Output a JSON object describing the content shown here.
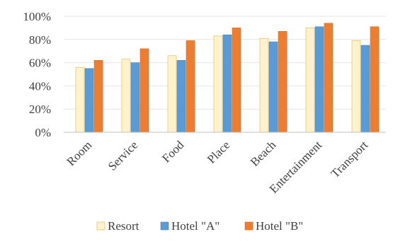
{
  "chart_data": {
    "type": "bar",
    "title": "",
    "xlabel": "",
    "ylabel": "",
    "categories": [
      "Room",
      "Service",
      "Food",
      "Place",
      "Beach",
      "Entertainment",
      "Transport"
    ],
    "series": [
      {
        "name": "Resort",
        "color": "#FFF2CC",
        "stroke": "#D9B44A",
        "values": [
          0.56,
          0.63,
          0.66,
          0.83,
          0.81,
          0.9,
          0.79
        ]
      },
      {
        "name": "Hotel \"A\"",
        "color": "#5B9BD5",
        "stroke": "#4A86C0",
        "values": [
          0.55,
          0.6,
          0.62,
          0.84,
          0.78,
          0.91,
          0.75
        ]
      },
      {
        "name": "Hotel \"B\"",
        "color": "#ED7D31",
        "stroke": "#D46A22",
        "values": [
          0.62,
          0.72,
          0.79,
          0.9,
          0.87,
          0.94,
          0.91
        ]
      }
    ],
    "yticks": [
      "0%",
      "20%",
      "40%",
      "60%",
      "80%",
      "100%"
    ],
    "ylim": [
      0,
      1
    ],
    "grid": true,
    "legend_position": "bottom"
  }
}
